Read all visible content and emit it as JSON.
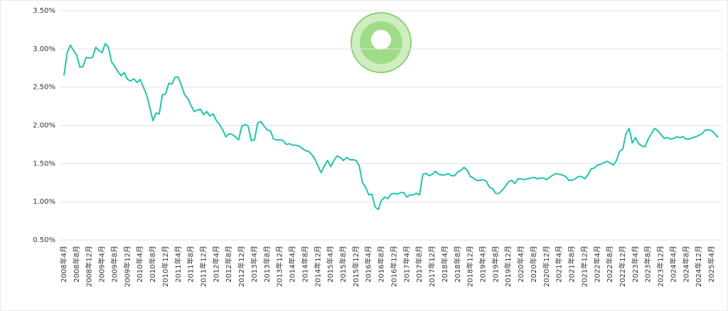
{
  "chart_data": {
    "type": "line",
    "categories": [
      "2008年4月",
      null,
      null,
      null,
      "2008年8月",
      null,
      null,
      null,
      "2008年12月",
      null,
      null,
      null,
      "2009年4月",
      null,
      null,
      null,
      "2009年8月",
      null,
      null,
      null,
      "2009年12月",
      null,
      null,
      null,
      "2010年4月",
      null,
      null,
      null,
      "2010年8月",
      null,
      null,
      null,
      "2010年12月",
      null,
      null,
      null,
      "2011年4月",
      null,
      null,
      null,
      "2011年8月",
      null,
      null,
      null,
      "2011年12月",
      null,
      null,
      null,
      "2012年4月",
      null,
      null,
      null,
      "2012年8月",
      null,
      null,
      null,
      "2012年12月",
      null,
      null,
      null,
      "2013年4月",
      null,
      null,
      null,
      "2013年8月",
      null,
      null,
      null,
      "2013年12月",
      null,
      null,
      null,
      "2014年4月",
      null,
      null,
      null,
      "2014年8月",
      null,
      null,
      null,
      "2014年12月",
      null,
      null,
      null,
      "2015年4月",
      null,
      null,
      null,
      "2015年8月",
      null,
      null,
      null,
      "2015年12月",
      null,
      null,
      null,
      "2016年4月",
      null,
      null,
      null,
      "2016年8月",
      null,
      null,
      null,
      "2016年12月",
      null,
      null,
      null,
      "2017年4月",
      null,
      null,
      null,
      "2017年8月",
      null,
      null,
      null,
      "2017年12月",
      null,
      null,
      null,
      "2018年4月",
      null,
      null,
      null,
      "2018年8月",
      null,
      null,
      null,
      "2018年12月",
      null,
      null,
      null,
      "2019年4月",
      null,
      null,
      null,
      "2019年8月",
      null,
      null,
      null,
      "2019年12月",
      null,
      null,
      null,
      "2020年4月",
      null,
      null,
      null,
      "2020年8月",
      null,
      null,
      null,
      "2020年12月",
      null,
      null,
      null,
      "2021年4月",
      null,
      null,
      null,
      "2021年8月",
      null,
      null,
      null,
      "2021年12月",
      null,
      null,
      null,
      "2022年4月",
      null,
      null,
      null,
      "2022年8月",
      null,
      null,
      null,
      "2022年12月",
      null,
      null,
      null,
      "2023年4月",
      null,
      null,
      null,
      "2023年8月",
      null,
      null,
      null,
      "2023年12月",
      null,
      null,
      null,
      "2024年4月",
      null,
      null,
      null,
      "2024年8月",
      null,
      null,
      null,
      "2024年12月",
      null,
      null,
      null,
      "2025年4月",
      null,
      null
    ],
    "values": [
      2.65,
      2.95,
      3.05,
      2.98,
      2.92,
      2.76,
      2.77,
      2.89,
      2.88,
      2.89,
      3.02,
      2.98,
      2.95,
      3.07,
      3.02,
      2.83,
      2.77,
      2.7,
      2.65,
      2.69,
      2.6,
      2.58,
      2.61,
      2.56,
      2.6,
      2.5,
      2.4,
      2.24,
      2.06,
      2.16,
      2.15,
      2.4,
      2.41,
      2.55,
      2.54,
      2.63,
      2.63,
      2.52,
      2.4,
      2.35,
      2.26,
      2.18,
      2.2,
      2.21,
      2.14,
      2.18,
      2.12,
      2.15,
      2.06,
      2.01,
      1.94,
      1.85,
      1.89,
      1.88,
      1.85,
      1.81,
      1.99,
      2.01,
      1.99,
      1.8,
      1.81,
      2.03,
      2.05,
      1.99,
      1.94,
      1.93,
      1.82,
      1.81,
      1.81,
      1.8,
      1.75,
      1.76,
      1.74,
      1.74,
      1.73,
      1.7,
      1.67,
      1.66,
      1.62,
      1.56,
      1.47,
      1.38,
      1.47,
      1.54,
      1.46,
      1.54,
      1.6,
      1.58,
      1.54,
      1.58,
      1.55,
      1.55,
      1.54,
      1.47,
      1.25,
      1.19,
      1.09,
      1.1,
      0.93,
      0.9,
      1.02,
      1.06,
      1.04,
      1.1,
      1.11,
      1.1,
      1.12,
      1.12,
      1.06,
      1.09,
      1.09,
      1.11,
      1.09,
      1.36,
      1.37,
      1.34,
      1.36,
      1.4,
      1.36,
      1.35,
      1.35,
      1.37,
      1.34,
      1.34,
      1.39,
      1.41,
      1.45,
      1.41,
      1.33,
      1.31,
      1.28,
      1.28,
      1.29,
      1.27,
      1.19,
      1.17,
      1.11,
      1.11,
      1.15,
      1.2,
      1.26,
      1.28,
      1.24,
      1.3,
      1.3,
      1.29,
      1.3,
      1.31,
      1.32,
      1.3,
      1.31,
      1.31,
      1.29,
      1.32,
      1.35,
      1.37,
      1.36,
      1.35,
      1.33,
      1.28,
      1.28,
      1.3,
      1.33,
      1.33,
      1.3,
      1.35,
      1.43,
      1.44,
      1.48,
      1.49,
      1.51,
      1.53,
      1.51,
      1.48,
      1.54,
      1.66,
      1.69,
      1.89,
      1.96,
      1.77,
      1.84,
      1.76,
      1.73,
      1.72,
      1.82,
      1.89,
      1.96,
      1.93,
      1.88,
      1.83,
      1.84,
      1.82,
      1.83,
      1.85,
      1.84,
      1.85,
      1.82,
      1.82,
      1.84,
      1.85,
      1.87,
      1.89,
      1.94,
      1.94,
      1.93,
      1.89,
      1.84
    ],
    "color": "#22c4ad",
    "ylim": [
      0.5,
      3.5
    ],
    "yticks": [
      {
        "value": 0.5,
        "label": "0.50%"
      },
      {
        "value": 1.0,
        "label": "1.00%"
      },
      {
        "value": 1.5,
        "label": "1.50%"
      },
      {
        "value": 2.0,
        "label": "2.00%"
      },
      {
        "value": 2.5,
        "label": "2.50%"
      },
      {
        "value": 3.0,
        "label": "3.00%"
      },
      {
        "value": 3.5,
        "label": "3.50%"
      }
    ],
    "grid": true
  }
}
